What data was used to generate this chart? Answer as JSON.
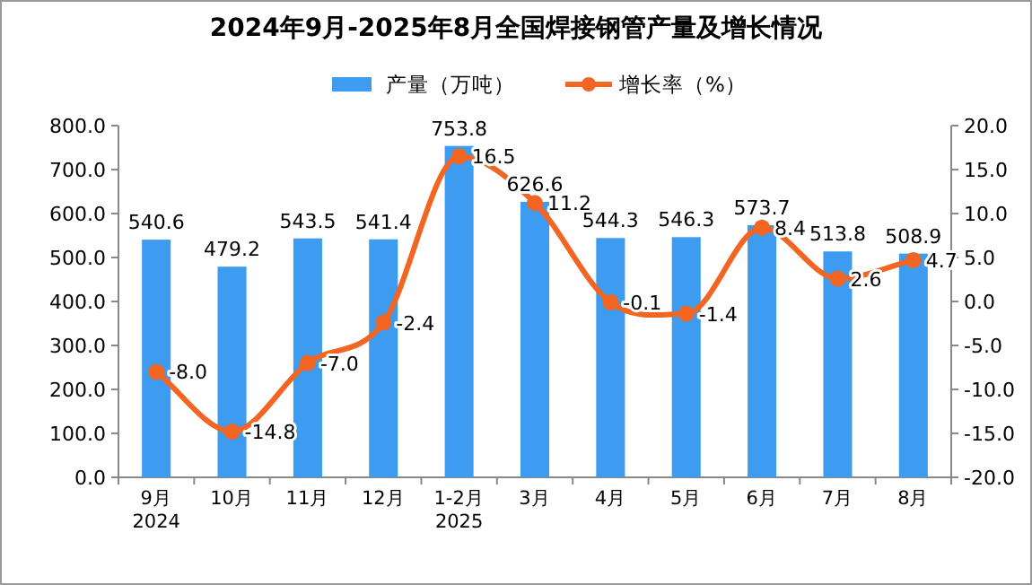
{
  "chart_data": {
    "type": "bar",
    "title": "2024年9月-2025年8月全国焊接钢管产量及增长情况",
    "categories": [
      "9月\n2024",
      "10月",
      "11月",
      "12月",
      "1-2月\n2025",
      "3月",
      "4月",
      "5月",
      "6月",
      "7月",
      "8月"
    ],
    "series": [
      {
        "name": "产量（万吨）",
        "color": "#3d9cf0",
        "values": [
          540.6,
          479.2,
          543.5,
          541.4,
          753.8,
          626.6,
          544.3,
          546.3,
          573.7,
          513.8,
          508.9
        ],
        "value_labels": [
          "540.6",
          "479.2",
          "543.5",
          "541.4",
          "753.8",
          "626.6",
          "544.3",
          "546.3",
          "573.7",
          "513.8",
          "508.9"
        ]
      },
      {
        "name": "增长率（%）",
        "type": "line",
        "axis": "y2",
        "color": "#f26522",
        "marker": "circle",
        "values": [
          -8.0,
          -14.8,
          -7.0,
          -2.4,
          16.5,
          11.2,
          -0.1,
          -1.4,
          8.4,
          2.6,
          4.7
        ],
        "value_labels": [
          "-8.0",
          "-14.8",
          "-7.0",
          "-2.4",
          "16.5",
          "11.2",
          "-0.1",
          "-1.4",
          "8.4",
          "2.6",
          "4.7"
        ]
      }
    ],
    "ylim": [
      0,
      800
    ],
    "yticks": [
      {
        "value": 0,
        "label": "0.0"
      },
      {
        "value": 100,
        "label": "100.0"
      },
      {
        "value": 200,
        "label": "200.0"
      },
      {
        "value": 300,
        "label": "300.0"
      },
      {
        "value": 400,
        "label": "400.0"
      },
      {
        "value": 500,
        "label": "500.0"
      },
      {
        "value": 600,
        "label": "600.0"
      },
      {
        "value": 700,
        "label": "700.0"
      },
      {
        "value": 800,
        "label": "800.0"
      }
    ],
    "y2lim": [
      -20,
      20
    ],
    "y2ticks": [
      {
        "value": -20,
        "label": "-20.0"
      },
      {
        "value": -15,
        "label": "-15.0"
      },
      {
        "value": -10,
        "label": "-10.0"
      },
      {
        "value": -5,
        "label": "-5.0"
      },
      {
        "value": 0,
        "label": "0.0"
      },
      {
        "value": 5,
        "label": "5.0"
      },
      {
        "value": 10,
        "label": "10.0"
      },
      {
        "value": 15,
        "label": "15.0"
      },
      {
        "value": 20,
        "label": "20.0"
      }
    ],
    "legend": "top",
    "grid": false
  }
}
